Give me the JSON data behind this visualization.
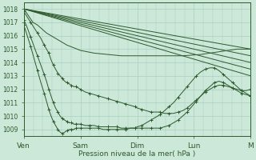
{
  "background_color": "#cce8d8",
  "grid_color": "#a8cfc0",
  "line_color": "#2d5a2d",
  "title": "Pression niveau de la mer( hPa )",
  "ylim": [
    1008.5,
    1018.5
  ],
  "yticks": [
    1009,
    1010,
    1011,
    1012,
    1013,
    1014,
    1015,
    1016,
    1017,
    1018
  ],
  "xtick_labels": [
    "Ven",
    "Sam",
    "Dim",
    "Lun",
    "M"
  ],
  "xtick_positions": [
    0,
    0.25,
    0.5,
    0.75,
    1.0
  ],
  "flat_lines": [
    [
      [
        0,
        1018.0
      ],
      [
        1.0,
        1015.0
      ]
    ],
    [
      [
        0,
        1018.0
      ],
      [
        1.0,
        1014.5
      ]
    ],
    [
      [
        0,
        1018.0
      ],
      [
        1.0,
        1014.0
      ]
    ],
    [
      [
        0,
        1018.0
      ],
      [
        1.0,
        1013.5
      ]
    ],
    [
      [
        0,
        1018.0
      ],
      [
        1.0,
        1013.0
      ]
    ]
  ],
  "detailed_lines": [
    {
      "has_markers": false,
      "points": [
        [
          0,
          1018.0
        ],
        [
          0.02,
          1017.5
        ],
        [
          0.04,
          1017.0
        ],
        [
          0.06,
          1016.8
        ],
        [
          0.08,
          1016.5
        ],
        [
          0.1,
          1016.2
        ],
        [
          0.13,
          1015.9
        ],
        [
          0.16,
          1015.6
        ],
        [
          0.19,
          1015.3
        ],
        [
          0.22,
          1015.1
        ],
        [
          0.25,
          1014.9
        ],
        [
          0.28,
          1014.8
        ],
        [
          0.31,
          1014.7
        ],
        [
          0.34,
          1014.65
        ],
        [
          0.37,
          1014.6
        ],
        [
          0.4,
          1014.55
        ],
        [
          0.43,
          1014.5
        ],
        [
          0.46,
          1014.5
        ],
        [
          0.5,
          1014.5
        ],
        [
          0.54,
          1014.5
        ],
        [
          0.58,
          1014.5
        ],
        [
          0.62,
          1014.5
        ],
        [
          0.66,
          1014.5
        ],
        [
          0.7,
          1014.5
        ],
        [
          0.74,
          1014.55
        ],
        [
          0.78,
          1014.6
        ],
        [
          0.82,
          1014.7
        ],
        [
          0.86,
          1014.8
        ],
        [
          0.9,
          1014.9
        ],
        [
          0.94,
          1015.0
        ],
        [
          1.0,
          1015.0
        ]
      ]
    },
    {
      "has_markers": true,
      "points": [
        [
          0,
          1017.8
        ],
        [
          0.015,
          1017.4
        ],
        [
          0.03,
          1017.0
        ],
        [
          0.045,
          1016.6
        ],
        [
          0.06,
          1016.2
        ],
        [
          0.075,
          1015.8
        ],
        [
          0.09,
          1015.3
        ],
        [
          0.1,
          1015.0
        ],
        [
          0.11,
          1014.7
        ],
        [
          0.12,
          1014.2
        ],
        [
          0.13,
          1013.8
        ],
        [
          0.14,
          1013.5
        ],
        [
          0.15,
          1013.2
        ],
        [
          0.16,
          1013.0
        ],
        [
          0.17,
          1012.8
        ],
        [
          0.18,
          1012.6
        ],
        [
          0.19,
          1012.5
        ],
        [
          0.2,
          1012.4
        ],
        [
          0.21,
          1012.3
        ],
        [
          0.22,
          1012.2
        ],
        [
          0.23,
          1012.2
        ],
        [
          0.24,
          1012.1
        ],
        [
          0.25,
          1012.0
        ],
        [
          0.27,
          1011.8
        ],
        [
          0.29,
          1011.7
        ],
        [
          0.31,
          1011.6
        ],
        [
          0.33,
          1011.5
        ],
        [
          0.35,
          1011.4
        ],
        [
          0.37,
          1011.3
        ],
        [
          0.39,
          1011.2
        ],
        [
          0.41,
          1011.1
        ],
        [
          0.43,
          1011.0
        ],
        [
          0.45,
          1010.9
        ],
        [
          0.47,
          1010.8
        ],
        [
          0.49,
          1010.7
        ],
        [
          0.5,
          1010.6
        ],
        [
          0.52,
          1010.5
        ],
        [
          0.54,
          1010.4
        ],
        [
          0.56,
          1010.3
        ],
        [
          0.58,
          1010.3
        ],
        [
          0.6,
          1010.3
        ],
        [
          0.62,
          1010.2
        ],
        [
          0.64,
          1010.2
        ],
        [
          0.66,
          1010.2
        ],
        [
          0.68,
          1010.3
        ],
        [
          0.7,
          1010.4
        ],
        [
          0.72,
          1010.6
        ],
        [
          0.74,
          1010.9
        ],
        [
          0.76,
          1011.2
        ],
        [
          0.78,
          1011.5
        ],
        [
          0.8,
          1011.8
        ],
        [
          0.82,
          1012.0
        ],
        [
          0.84,
          1012.2
        ],
        [
          0.86,
          1012.3
        ],
        [
          0.88,
          1012.3
        ],
        [
          0.9,
          1012.2
        ],
        [
          0.92,
          1012.1
        ],
        [
          0.94,
          1012.0
        ],
        [
          0.96,
          1011.9
        ],
        [
          0.98,
          1011.9
        ],
        [
          1.0,
          1012.0
        ]
      ]
    },
    {
      "has_markers": true,
      "points": [
        [
          0,
          1017.2
        ],
        [
          0.015,
          1016.6
        ],
        [
          0.03,
          1015.9
        ],
        [
          0.045,
          1015.2
        ],
        [
          0.06,
          1014.5
        ],
        [
          0.075,
          1013.8
        ],
        [
          0.09,
          1013.1
        ],
        [
          0.1,
          1012.6
        ],
        [
          0.11,
          1012.0
        ],
        [
          0.12,
          1011.5
        ],
        [
          0.13,
          1011.0
        ],
        [
          0.14,
          1010.6
        ],
        [
          0.15,
          1010.3
        ],
        [
          0.16,
          1010.0
        ],
        [
          0.17,
          1009.8
        ],
        [
          0.18,
          1009.7
        ],
        [
          0.19,
          1009.6
        ],
        [
          0.2,
          1009.5
        ],
        [
          0.21,
          1009.5
        ],
        [
          0.22,
          1009.4
        ],
        [
          0.23,
          1009.4
        ],
        [
          0.24,
          1009.4
        ],
        [
          0.25,
          1009.4
        ],
        [
          0.27,
          1009.3
        ],
        [
          0.29,
          1009.3
        ],
        [
          0.31,
          1009.3
        ],
        [
          0.33,
          1009.2
        ],
        [
          0.35,
          1009.2
        ],
        [
          0.37,
          1009.2
        ],
        [
          0.39,
          1009.2
        ],
        [
          0.41,
          1009.2
        ],
        [
          0.43,
          1009.1
        ],
        [
          0.45,
          1009.1
        ],
        [
          0.47,
          1009.1
        ],
        [
          0.49,
          1009.1
        ],
        [
          0.5,
          1009.1
        ],
        [
          0.52,
          1009.1
        ],
        [
          0.54,
          1009.1
        ],
        [
          0.56,
          1009.1
        ],
        [
          0.58,
          1009.1
        ],
        [
          0.6,
          1009.1
        ],
        [
          0.62,
          1009.2
        ],
        [
          0.64,
          1009.3
        ],
        [
          0.66,
          1009.5
        ],
        [
          0.68,
          1009.7
        ],
        [
          0.7,
          1010.0
        ],
        [
          0.72,
          1010.3
        ],
        [
          0.74,
          1010.7
        ],
        [
          0.76,
          1011.1
        ],
        [
          0.78,
          1011.5
        ],
        [
          0.8,
          1011.9
        ],
        [
          0.82,
          1012.2
        ],
        [
          0.84,
          1012.5
        ],
        [
          0.86,
          1012.6
        ],
        [
          0.88,
          1012.5
        ],
        [
          0.9,
          1012.3
        ],
        [
          0.92,
          1012.1
        ],
        [
          0.94,
          1011.9
        ],
        [
          0.96,
          1011.7
        ],
        [
          0.98,
          1011.6
        ],
        [
          1.0,
          1011.5
        ]
      ]
    },
    {
      "has_markers": true,
      "points": [
        [
          0,
          1016.8
        ],
        [
          0.015,
          1016.0
        ],
        [
          0.03,
          1015.2
        ],
        [
          0.045,
          1014.3
        ],
        [
          0.06,
          1013.4
        ],
        [
          0.075,
          1012.5
        ],
        [
          0.09,
          1011.7
        ],
        [
          0.1,
          1011.1
        ],
        [
          0.11,
          1010.5
        ],
        [
          0.12,
          1010.0
        ],
        [
          0.13,
          1009.6
        ],
        [
          0.14,
          1009.3
        ],
        [
          0.15,
          1009.0
        ],
        [
          0.16,
          1008.8
        ],
        [
          0.17,
          1008.7
        ],
        [
          0.18,
          1008.8
        ],
        [
          0.19,
          1008.9
        ],
        [
          0.2,
          1009.0
        ],
        [
          0.21,
          1009.0
        ],
        [
          0.22,
          1009.0
        ],
        [
          0.23,
          1009.1
        ],
        [
          0.24,
          1009.1
        ],
        [
          0.25,
          1009.1
        ],
        [
          0.27,
          1009.1
        ],
        [
          0.29,
          1009.1
        ],
        [
          0.31,
          1009.1
        ],
        [
          0.33,
          1009.1
        ],
        [
          0.35,
          1009.0
        ],
        [
          0.37,
          1009.0
        ],
        [
          0.39,
          1009.0
        ],
        [
          0.41,
          1009.0
        ],
        [
          0.43,
          1009.0
        ],
        [
          0.45,
          1009.0
        ],
        [
          0.47,
          1009.1
        ],
        [
          0.49,
          1009.1
        ],
        [
          0.5,
          1009.2
        ],
        [
          0.52,
          1009.3
        ],
        [
          0.54,
          1009.5
        ],
        [
          0.56,
          1009.7
        ],
        [
          0.58,
          1009.9
        ],
        [
          0.6,
          1010.1
        ],
        [
          0.62,
          1010.4
        ],
        [
          0.64,
          1010.7
        ],
        [
          0.66,
          1011.0
        ],
        [
          0.68,
          1011.4
        ],
        [
          0.7,
          1011.8
        ],
        [
          0.72,
          1012.2
        ],
        [
          0.74,
          1012.6
        ],
        [
          0.76,
          1013.0
        ],
        [
          0.78,
          1013.3
        ],
        [
          0.8,
          1013.5
        ],
        [
          0.82,
          1013.6
        ],
        [
          0.84,
          1013.6
        ],
        [
          0.86,
          1013.4
        ],
        [
          0.88,
          1013.1
        ],
        [
          0.9,
          1012.8
        ],
        [
          0.92,
          1012.5
        ],
        [
          0.94,
          1012.2
        ],
        [
          0.96,
          1011.9
        ],
        [
          0.98,
          1011.7
        ],
        [
          1.0,
          1011.5
        ]
      ]
    }
  ]
}
